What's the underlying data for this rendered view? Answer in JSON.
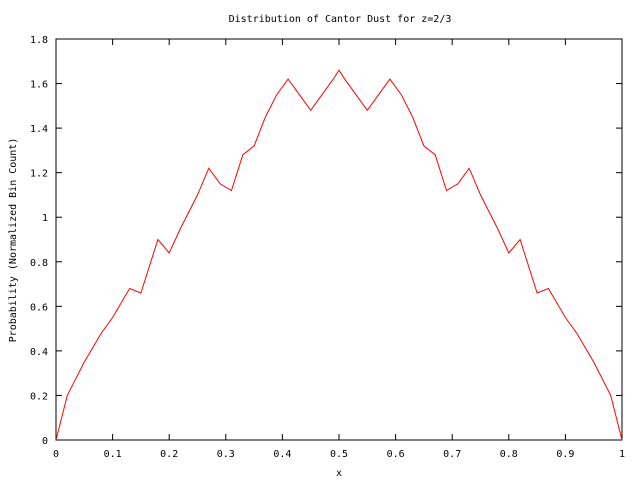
{
  "chart_data": {
    "type": "line",
    "title": "Distribution of Cantor Dust for z=2/3",
    "xlabel": "x",
    "ylabel": "Probability (Normalized Bin Count)",
    "xlim": [
      0,
      1
    ],
    "ylim": [
      0,
      1.8
    ],
    "xticks": [
      "0",
      "0.1",
      "0.2",
      "0.3",
      "0.4",
      "0.5",
      "0.6",
      "0.7",
      "0.8",
      "0.9",
      "1"
    ],
    "yticks": [
      "0",
      "0.2",
      "0.4",
      "0.6",
      "0.8",
      "1",
      "1.2",
      "1.4",
      "1.6",
      "1.8"
    ],
    "grid": false,
    "legend": "none",
    "series": [
      {
        "color": "#ff0000",
        "x": [
          0,
          0.02,
          0.05,
          0.08,
          0.1,
          0.13,
          0.15,
          0.18,
          0.2,
          0.22,
          0.25,
          0.27,
          0.29,
          0.31,
          0.33,
          0.35,
          0.37,
          0.39,
          0.41,
          0.43,
          0.45,
          0.47,
          0.49,
          0.5,
          0.51,
          0.53,
          0.55,
          0.57,
          0.59,
          0.61,
          0.63,
          0.65,
          0.67,
          0.69,
          0.71,
          0.73,
          0.75,
          0.78,
          0.8,
          0.82,
          0.85,
          0.87,
          0.9,
          0.92,
          0.95,
          0.98,
          1
        ],
        "y": [
          0,
          0.2,
          0.35,
          0.48,
          0.55,
          0.68,
          0.66,
          0.9,
          0.84,
          0.95,
          1.1,
          1.22,
          1.15,
          1.12,
          1.28,
          1.32,
          1.45,
          1.55,
          1.62,
          1.55,
          1.48,
          1.55,
          1.62,
          1.66,
          1.62,
          1.55,
          1.48,
          1.55,
          1.62,
          1.55,
          1.45,
          1.32,
          1.28,
          1.12,
          1.15,
          1.22,
          1.1,
          0.95,
          0.84,
          0.9,
          0.66,
          0.68,
          0.55,
          0.48,
          0.35,
          0.2,
          0
        ]
      }
    ]
  }
}
